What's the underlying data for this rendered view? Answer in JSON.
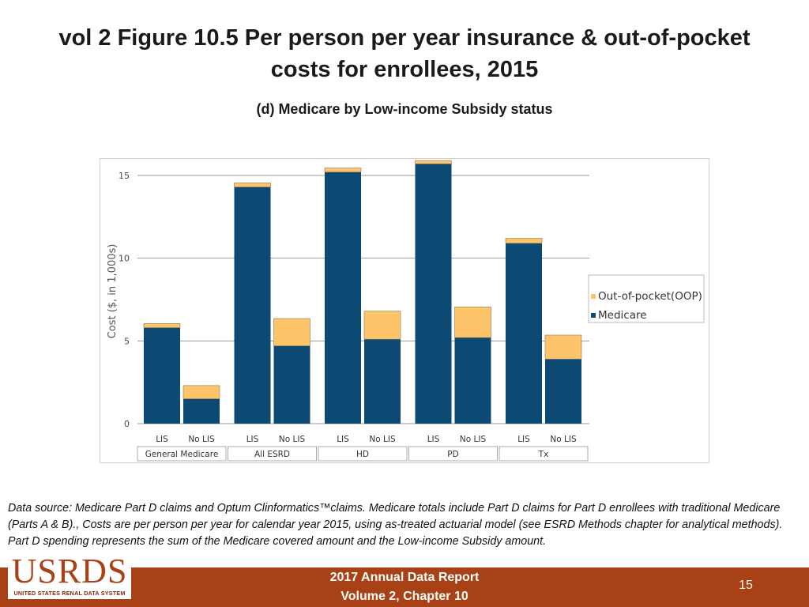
{
  "header": {
    "title": "vol 2 Figure 10.5 Per person per year insurance & out-of-pocket costs for enrollees, 2015",
    "subtitle": "(d) Medicare by Low-income Subsidy status"
  },
  "chart_data": {
    "type": "bar",
    "stacked": true,
    "groups": [
      "General Medicare",
      "All ESRD",
      "HD",
      "PD",
      "Tx"
    ],
    "categories": [
      "LIS",
      "No LIS",
      "LIS",
      "No LIS",
      "LIS",
      "No LIS",
      "LIS",
      "No LIS",
      "LIS",
      "No LIS"
    ],
    "series": [
      {
        "name": "Medicare",
        "values": [
          5.8,
          1.5,
          14.3,
          4.7,
          15.2,
          5.1,
          15.7,
          5.2,
          10.9,
          3.9
        ],
        "color": "#0d4a73"
      },
      {
        "name": "Out-of-pocket(OOP)",
        "values": [
          0.25,
          0.8,
          0.25,
          1.65,
          0.25,
          1.7,
          0.2,
          1.85,
          0.3,
          1.45
        ],
        "color": "#fdc46a"
      }
    ],
    "ylabel": "Cost ($, in 1,000s)",
    "xlabel": "",
    "ylim": [
      0,
      16
    ],
    "yticks": [
      0,
      5,
      10,
      15
    ],
    "grid": true,
    "legend": "right"
  },
  "footnote": {
    "source": "Data source: Medicare Part D claims and Optum Clinformatics™claims. Medicare totals include Part D claims for Part D enrollees with traditional Medicare (Parts A & B)., Costs are per person per year for calendar year 2015, using as-treated actuarial model (see ESRD Methods chapter for analytical methods). Part D spending represents the sum of the Medicare covered amount and the Low-income Subsidy amount."
  },
  "footer": {
    "logo_text": "USRDS",
    "logo_subtext": "UNITED STATES RENAL DATA SYSTEM",
    "report_line1": "2017 Annual Data Report",
    "report_line2": "Volume 2, Chapter 10",
    "page_number": "15",
    "bar_color": "#a84216"
  }
}
